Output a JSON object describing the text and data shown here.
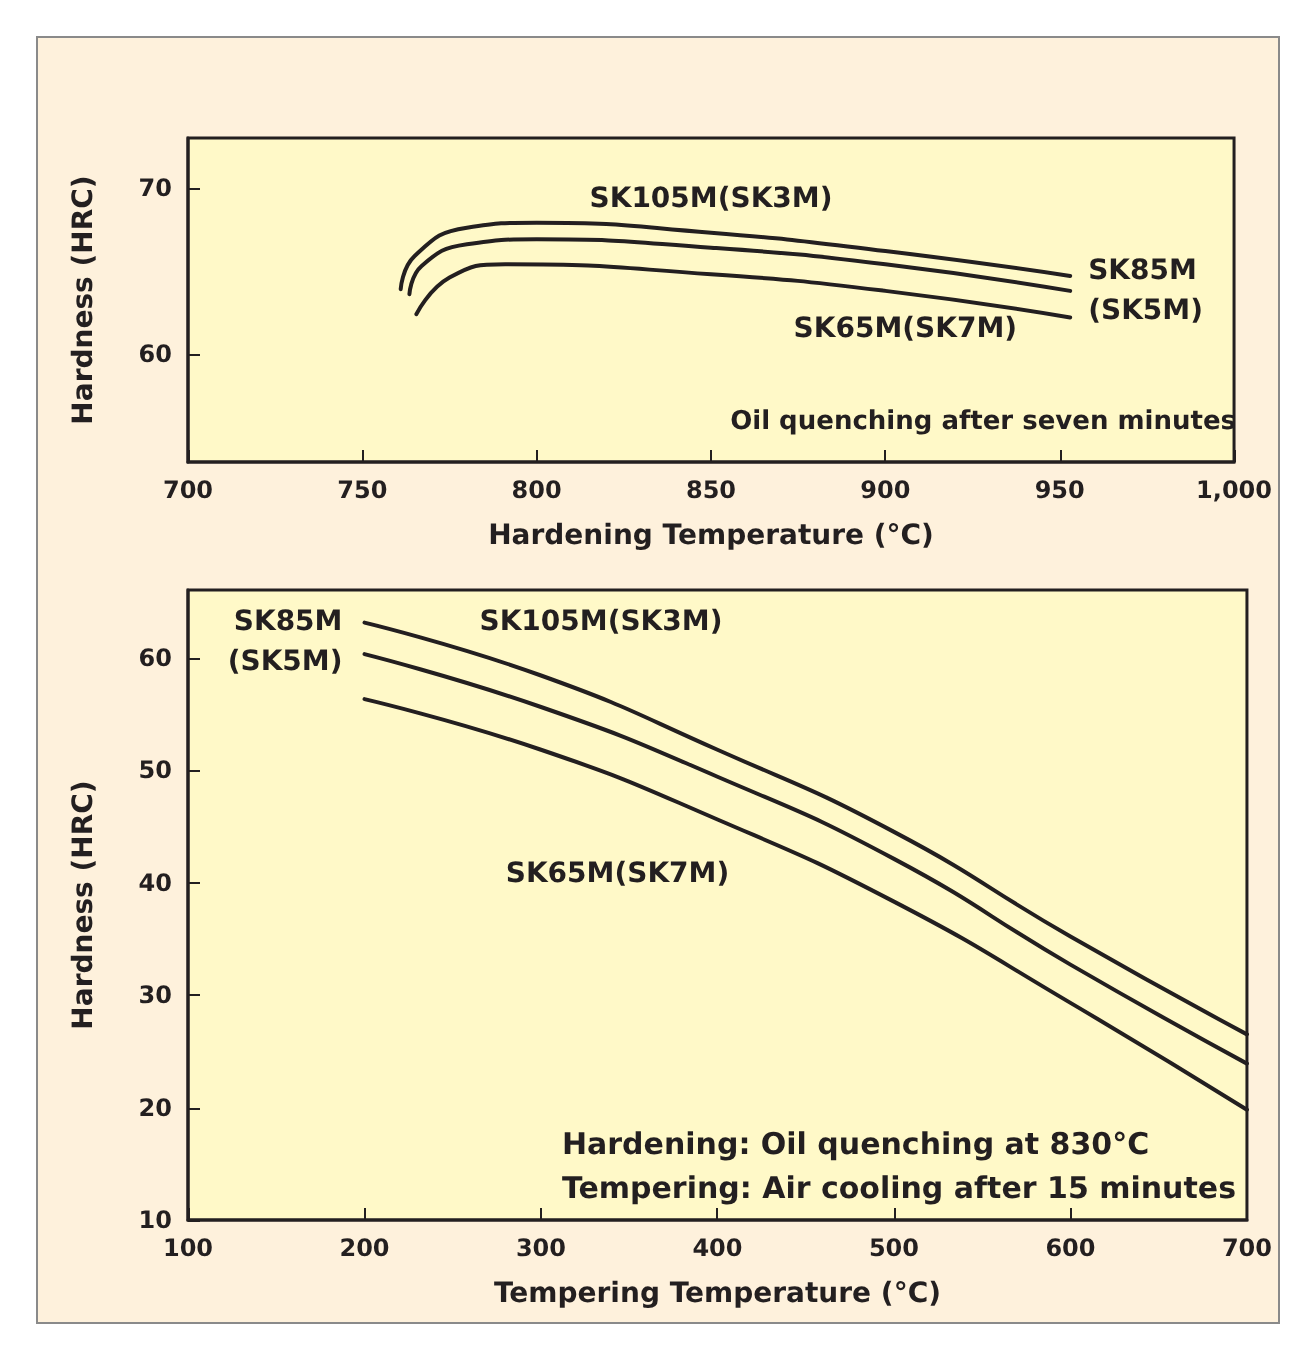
{
  "chart_data": [
    {
      "type": "line",
      "xlabel": "Hardening Temperature (°C)",
      "ylabel": "Hardness (HRC)",
      "xlim": [
        700,
        1000
      ],
      "xticks": [
        700,
        750,
        800,
        850,
        900,
        950,
        {
          "value": 1000,
          "label": "1,000"
        }
      ],
      "ylim": [
        53.5,
        73
      ],
      "yticks": [
        60,
        70
      ],
      "grid": false,
      "legend": false,
      "marker": "none",
      "line_style": "solid",
      "annotations": [
        "Oil quenching after seven minutes"
      ],
      "series": [
        {
          "name": "SK105M(SK3M)",
          "color": "#231f20",
          "x": [
            761,
            765,
            780,
            800,
            850,
            900,
            953
          ],
          "values": [
            63.9,
            65.9,
            67.6,
            67.9,
            67.3,
            66.2,
            64.7
          ]
        },
        {
          "name": "SK85M(SK5M)",
          "color": "#231f20",
          "x": [
            763.5,
            767,
            780,
            800,
            850,
            900,
            953
          ],
          "values": [
            63.6,
            65.3,
            66.6,
            66.9,
            66.4,
            65.4,
            63.8
          ]
        },
        {
          "name": "SK65M(SK7M)",
          "color": "#231f20",
          "x": [
            765.5,
            775,
            791,
            850,
            900,
            953
          ],
          "values": [
            62.4,
            64.6,
            65.4,
            64.8,
            63.8,
            62.2
          ]
        }
      ]
    },
    {
      "type": "line",
      "xlabel": "Tempering Temperature (°C)",
      "ylabel": "Hardness (HRC)",
      "xlim": [
        100,
        700
      ],
      "xticks": [
        100,
        200,
        300,
        400,
        500,
        600,
        700
      ],
      "ylim": [
        10,
        66
      ],
      "yticks": [
        10,
        20,
        30,
        40,
        50,
        60
      ],
      "grid": false,
      "legend": false,
      "marker": "none",
      "line_style": "solid",
      "annotations": [
        "Hardening: Oil quenching at 830°C",
        "Tempering: Air cooling after 15 minutes"
      ],
      "series": [
        {
          "name": "SK105M(SK3M)",
          "color": "#231f20",
          "x": [
            200,
            300,
            400,
            500,
            600,
            700
          ],
          "values": [
            63.1,
            58.4,
            51.8,
            44.5,
            35.2,
            26.5
          ]
        },
        {
          "name": "SK85M(SK5M)",
          "color": "#231f20",
          "x": [
            200,
            300,
            400,
            500,
            600,
            700
          ],
          "values": [
            60.3,
            55.6,
            49.4,
            42.1,
            32.7,
            23.9
          ]
        },
        {
          "name": "SK65M(SK7M)",
          "color": "#231f20",
          "x": [
            200,
            300,
            400,
            500,
            600,
            700
          ],
          "values": [
            56.3,
            51.8,
            45.6,
            38.3,
            29.3,
            19.8
          ]
        }
      ]
    }
  ]
}
